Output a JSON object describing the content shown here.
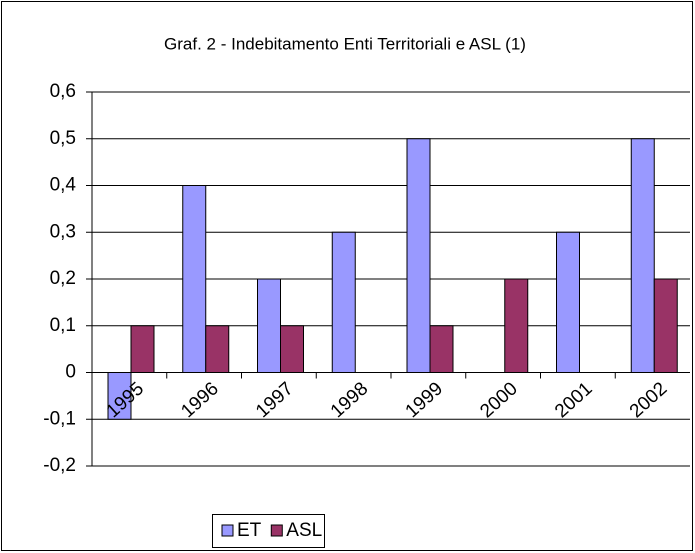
{
  "chart_data": {
    "type": "bar",
    "title": "Graf. 2 - Indebitamento  Enti Territoriali  e ASL  (1)",
    "categories": [
      "1995",
      "1996",
      "1997",
      "1998",
      "1999",
      "2000",
      "2001",
      "2002"
    ],
    "series": [
      {
        "name": "ET",
        "color": "#9999ff",
        "values": [
          -0.1,
          0.4,
          0.2,
          0.3,
          0.5,
          0,
          0.3,
          0.5
        ]
      },
      {
        "name": "ASL",
        "color": "#993366",
        "values": [
          0.1,
          0.1,
          0.1,
          0,
          0.1,
          0.2,
          0,
          0.2
        ]
      }
    ],
    "ylim": [
      -0.2,
      0.6
    ],
    "yticks": [
      {
        "value": -0.2,
        "label": "-0,2"
      },
      {
        "value": -0.1,
        "label": "-0,1"
      },
      0,
      {
        "value": 0.1,
        "label": "0,1"
      },
      {
        "value": 0.2,
        "label": "0,2"
      },
      {
        "value": 0.3,
        "label": "0,3"
      },
      {
        "value": 0.4,
        "label": "0,4"
      },
      {
        "value": 0.5,
        "label": "0,5"
      },
      {
        "value": 0.6,
        "label": "0,6"
      }
    ],
    "grid": true,
    "legend": "bottom"
  }
}
